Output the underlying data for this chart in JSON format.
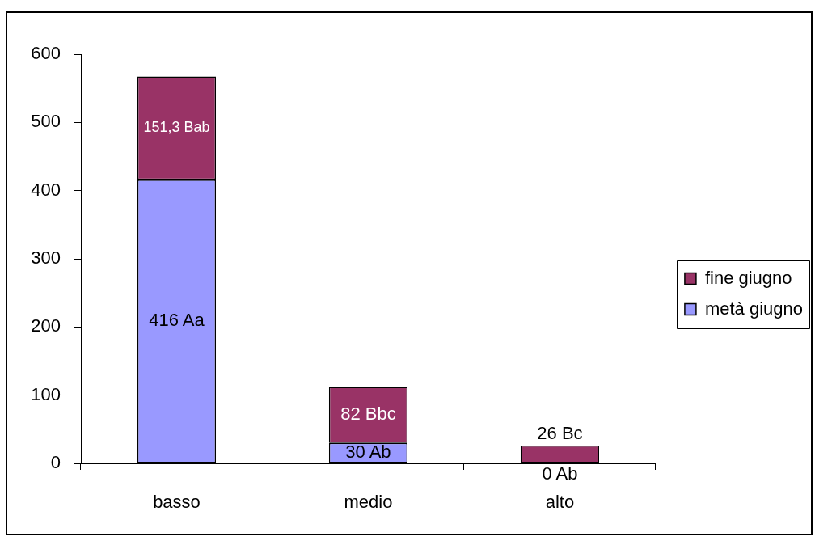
{
  "chart_data": {
    "type": "bar",
    "stacked": true,
    "categories": [
      "basso",
      "medio",
      "alto"
    ],
    "series": [
      {
        "name": "metà giugno",
        "color": "#9999ff",
        "values": [
          416,
          30,
          0
        ],
        "value_labels": [
          "416 Aa",
          "30 Ab",
          "0 Ab"
        ]
      },
      {
        "name": "fine giugno",
        "color": "#993366",
        "values": [
          151.3,
          82,
          26
        ],
        "value_labels": [
          "151,3 Bab",
          "82 Bbc",
          "26 Bc"
        ]
      }
    ],
    "ylim": [
      0,
      600
    ],
    "yticks": [
      0,
      100,
      200,
      300,
      400,
      500,
      600
    ],
    "grid": false,
    "legend": "right"
  }
}
